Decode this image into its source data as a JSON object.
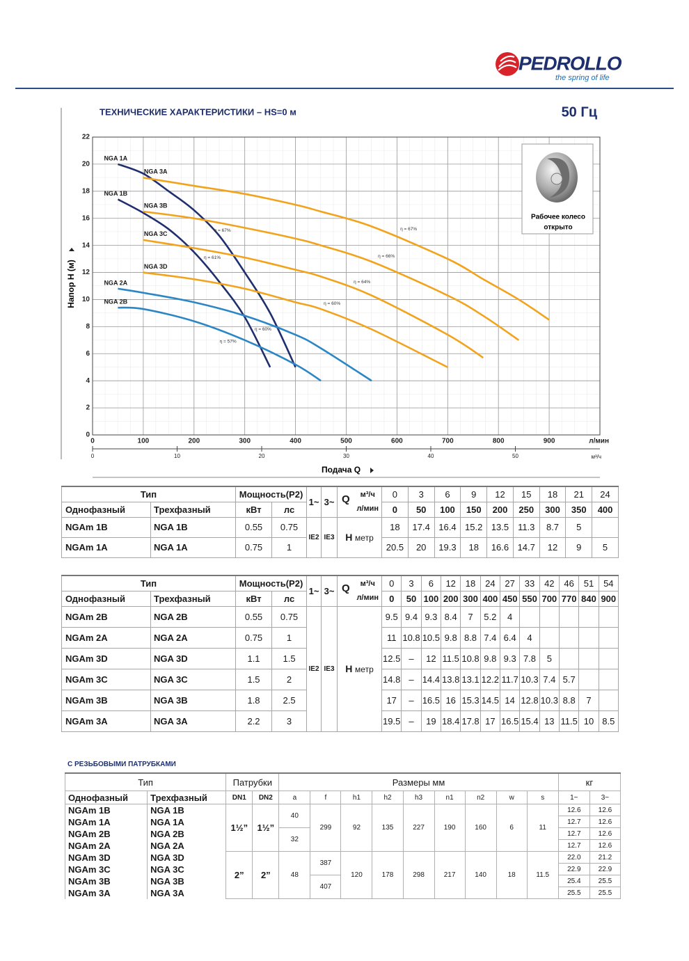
{
  "header": {
    "brand": "PEDROLLO",
    "tagline": "the spring of life"
  },
  "section": {
    "title": "ТЕХНИЧЕСКИЕ ХАРАКТЕРИСТИКИ – HS=0 м",
    "frequency": "50 Гц"
  },
  "chart_data": {
    "type": "line",
    "y_label": "Напор H (м)",
    "x_label": "Подача Q",
    "x_unit": "л/мин",
    "x2_unit": "м³/ч",
    "xlim": [
      0,
      1000
    ],
    "xticks": [
      0,
      100,
      200,
      300,
      400,
      500,
      600,
      700,
      800,
      900
    ],
    "x2lim": [
      0,
      60
    ],
    "x2ticks": [
      0,
      10,
      20,
      30,
      40,
      50
    ],
    "ylim": [
      0,
      22
    ],
    "yticks": [
      0,
      2,
      4,
      6,
      8,
      10,
      12,
      14,
      16,
      18,
      20,
      22
    ],
    "grid": true,
    "series": [
      {
        "name": "NGA 1A",
        "color": "#1f2f6e",
        "x": [
          50,
          100,
          150,
          200,
          250,
          300,
          350,
          400
        ],
        "values": [
          20,
          19.3,
          18,
          16.6,
          14.7,
          12,
          9,
          5
        ]
      },
      {
        "name": "NGA 1B",
        "color": "#1f2f6e",
        "x": [
          50,
          100,
          150,
          200,
          250,
          300,
          350
        ],
        "values": [
          17.4,
          16.4,
          15.2,
          13.5,
          11.3,
          8.7,
          5
        ]
      },
      {
        "name": "NGA 2A",
        "color": "#2b86c6",
        "x": [
          50,
          100,
          200,
          300,
          400,
          450,
          550
        ],
        "values": [
          10.8,
          10.5,
          9.8,
          8.8,
          7.4,
          6.4,
          4
        ]
      },
      {
        "name": "NGA 2B",
        "color": "#2b86c6",
        "x": [
          50,
          100,
          200,
          300,
          400,
          450
        ],
        "values": [
          9.4,
          9.3,
          8.4,
          7,
          5.2,
          4
        ]
      },
      {
        "name": "NGA 3A",
        "color": "#f2a31b",
        "x": [
          100,
          200,
          300,
          400,
          450,
          550,
          700,
          770,
          840,
          900
        ],
        "values": [
          19,
          18.4,
          17.8,
          17,
          16.5,
          15.4,
          13,
          11.5,
          10,
          8.5
        ]
      },
      {
        "name": "NGA 3B",
        "color": "#f2a31b",
        "x": [
          100,
          200,
          300,
          400,
          450,
          550,
          700,
          770,
          840
        ],
        "values": [
          16.5,
          16,
          15.3,
          14.5,
          14,
          12.8,
          10.3,
          8.8,
          7
        ]
      },
      {
        "name": "NGA 3C",
        "color": "#f2a31b",
        "x": [
          100,
          200,
          300,
          400,
          450,
          550,
          700,
          770
        ],
        "values": [
          14.4,
          13.8,
          13.1,
          12.2,
          11.7,
          10.3,
          7.4,
          5.7
        ]
      },
      {
        "name": "NGA 3D",
        "color": "#f2a31b",
        "x": [
          100,
          200,
          300,
          400,
          450,
          550,
          700
        ],
        "values": [
          12,
          11.5,
          10.8,
          9.8,
          9.3,
          7.8,
          5
        ]
      }
    ],
    "annotations": [
      {
        "text": "η = 67%",
        "x": 256,
        "y": 15.1
      },
      {
        "text": "η = 61%",
        "x": 236,
        "y": 13.1
      },
      {
        "text": "η = 60%",
        "x": 336,
        "y": 7.8
      },
      {
        "text": "η = 57%",
        "x": 267,
        "y": 6.9
      },
      {
        "text": "η = 67%",
        "x": 623,
        "y": 15.2
      },
      {
        "text": "η = 66%",
        "x": 579,
        "y": 13.2
      },
      {
        "text": "η = 64%",
        "x": 531,
        "y": 11.3
      },
      {
        "text": "η = 60%",
        "x": 472,
        "y": 9.7
      }
    ],
    "inset": {
      "caption": [
        "Рабочее колесо",
        "открыто"
      ]
    }
  },
  "table1": {
    "header": {
      "type": "Тип",
      "power": "Мощность(P2)",
      "single": "Однофазный",
      "three": "Трехфазный",
      "kw": "кВт",
      "hp": "лс",
      "ph1": "1~",
      "ph3": "3~",
      "q": "Q",
      "unit_m3h": "м³/ч",
      "unit_lmin": "л/мин",
      "h": "H",
      "h_unit": "метр",
      "ie2": "IE2",
      "ie3": "IE3"
    },
    "q_m3h": [
      0,
      3,
      6,
      9,
      12,
      15,
      18,
      21,
      24
    ],
    "q_lmin": [
      0,
      50,
      100,
      150,
      200,
      250,
      300,
      350,
      400
    ],
    "rows": [
      {
        "single": "NGAm 1B",
        "three": "NGA 1B",
        "kw": 0.55,
        "hp": 0.75,
        "h": [
          18,
          17.4,
          16.4,
          15.2,
          13.5,
          11.3,
          8.7,
          5
        ]
      },
      {
        "single": "NGAm 1A",
        "three": "NGA 1A",
        "kw": 0.75,
        "hp": 1,
        "h": [
          20.5,
          20,
          19.3,
          18,
          16.6,
          14.7,
          12,
          9,
          5
        ]
      }
    ]
  },
  "table2": {
    "header": {
      "type": "Тип",
      "power": "Мощность(P2)",
      "single": "Однофазный",
      "three": "Трехфазный",
      "kw": "кВт",
      "hp": "лс",
      "ph1": "1~",
      "ph3": "3~",
      "q": "Q",
      "unit_m3h": "м³/ч",
      "unit_lmin": "л/мин",
      "h": "H",
      "h_unit": "метр",
      "ie2": "IE2",
      "ie3": "IE3"
    },
    "q_m3h": [
      0,
      3,
      6,
      12,
      18,
      24,
      27,
      33,
      42,
      46,
      51,
      54
    ],
    "q_lmin": [
      0,
      50,
      100,
      200,
      300,
      400,
      450,
      550,
      700,
      770,
      840,
      900
    ],
    "rows": [
      {
        "single": "NGAm 2B",
        "three": "NGA 2B",
        "kw": 0.55,
        "hp": 0.75,
        "h": [
          9.5,
          9.4,
          9.3,
          8.4,
          7,
          5.2,
          4
        ]
      },
      {
        "single": "NGAm 2A",
        "three": "NGA 2A",
        "kw": 0.75,
        "hp": 1,
        "h": [
          11,
          10.8,
          10.5,
          9.8,
          8.8,
          7.4,
          6.4,
          4
        ]
      },
      {
        "single": "NGAm 3D",
        "three": "NGA 3D",
        "kw": 1.1,
        "hp": 1.5,
        "h": [
          12.5,
          "–",
          12,
          11.5,
          10.8,
          9.8,
          9.3,
          7.8,
          5
        ]
      },
      {
        "single": "NGAm 3C",
        "three": "NGA 3C",
        "kw": 1.5,
        "hp": 2,
        "h": [
          14.8,
          "–",
          14.4,
          13.8,
          13.1,
          12.2,
          11.7,
          10.3,
          7.4,
          5.7
        ]
      },
      {
        "single": "NGAm 3B",
        "three": "NGA 3B",
        "kw": 1.8,
        "hp": 2.5,
        "h": [
          17,
          "–",
          16.5,
          16,
          15.3,
          14.5,
          14,
          12.8,
          10.3,
          8.8,
          7
        ]
      },
      {
        "single": "NGAm 3A",
        "three": "NGA 3A",
        "kw": 2.2,
        "hp": 3,
        "h": [
          19.5,
          "–",
          19,
          18.4,
          17.8,
          17,
          16.5,
          15.4,
          13,
          11.5,
          10,
          8.5
        ]
      }
    ]
  },
  "table3": {
    "title": "С РЕЗЬБОВЫМИ ПАТРУБКАМИ",
    "header": {
      "type": "Тип",
      "ports": "Патрубки",
      "dims": "Размеры мм",
      "kg": "кг",
      "single": "Однофазный",
      "three": "Трехфазный",
      "dn1": "DN1",
      "dn2": "DN2",
      "cols": [
        "a",
        "f",
        "h1",
        "h2",
        "h3",
        "n1",
        "n2",
        "w",
        "s"
      ],
      "kg1": "1~",
      "kg3": "3~"
    },
    "groups": [
      {
        "dn1": "1½”",
        "dn2": "1½”",
        "dims": [
          [
            "40",
            "32"
          ],
          [
            "299"
          ],
          [
            "92"
          ],
          [
            "135"
          ],
          [
            "227"
          ],
          [
            "190"
          ],
          [
            "160"
          ],
          [
            "6"
          ],
          [
            "11"
          ]
        ],
        "rows": [
          {
            "single": "NGAm 1B",
            "three": "NGA 1B",
            "kg": [
              "12.6",
              "12.6"
            ]
          },
          {
            "single": "NGAm 1A",
            "three": "NGA 1A",
            "kg": [
              "12.7",
              "12.6"
            ]
          },
          {
            "single": "NGAm 2B",
            "three": "NGA 2B",
            "kg": [
              "12.7",
              "12.6"
            ]
          },
          {
            "single": "NGAm 2A",
            "three": "NGA 2A",
            "kg": [
              "12.7",
              "12.6"
            ]
          }
        ]
      },
      {
        "dn1": "2”",
        "dn2": "2”",
        "dims": [
          [
            "48"
          ],
          [
            "387",
            "407"
          ],
          [
            "120"
          ],
          [
            "178"
          ],
          [
            "298"
          ],
          [
            "217"
          ],
          [
            "140"
          ],
          [
            "18"
          ],
          [
            "11.5"
          ]
        ],
        "rows": [
          {
            "single": "NGAm 3D",
            "three": "NGA 3D",
            "kg": [
              "22.0",
              "21.2"
            ]
          },
          {
            "single": "NGAm 3C",
            "three": "NGA 3C",
            "kg": [
              "22.9",
              "22.9"
            ]
          },
          {
            "single": "NGAm 3B",
            "three": "NGA 3B",
            "kg": [
              "25.4",
              "25.5"
            ]
          },
          {
            "single": "NGAm 3A",
            "three": "NGA 3A",
            "kg": [
              "25.5",
              "25.5"
            ]
          }
        ]
      }
    ]
  }
}
